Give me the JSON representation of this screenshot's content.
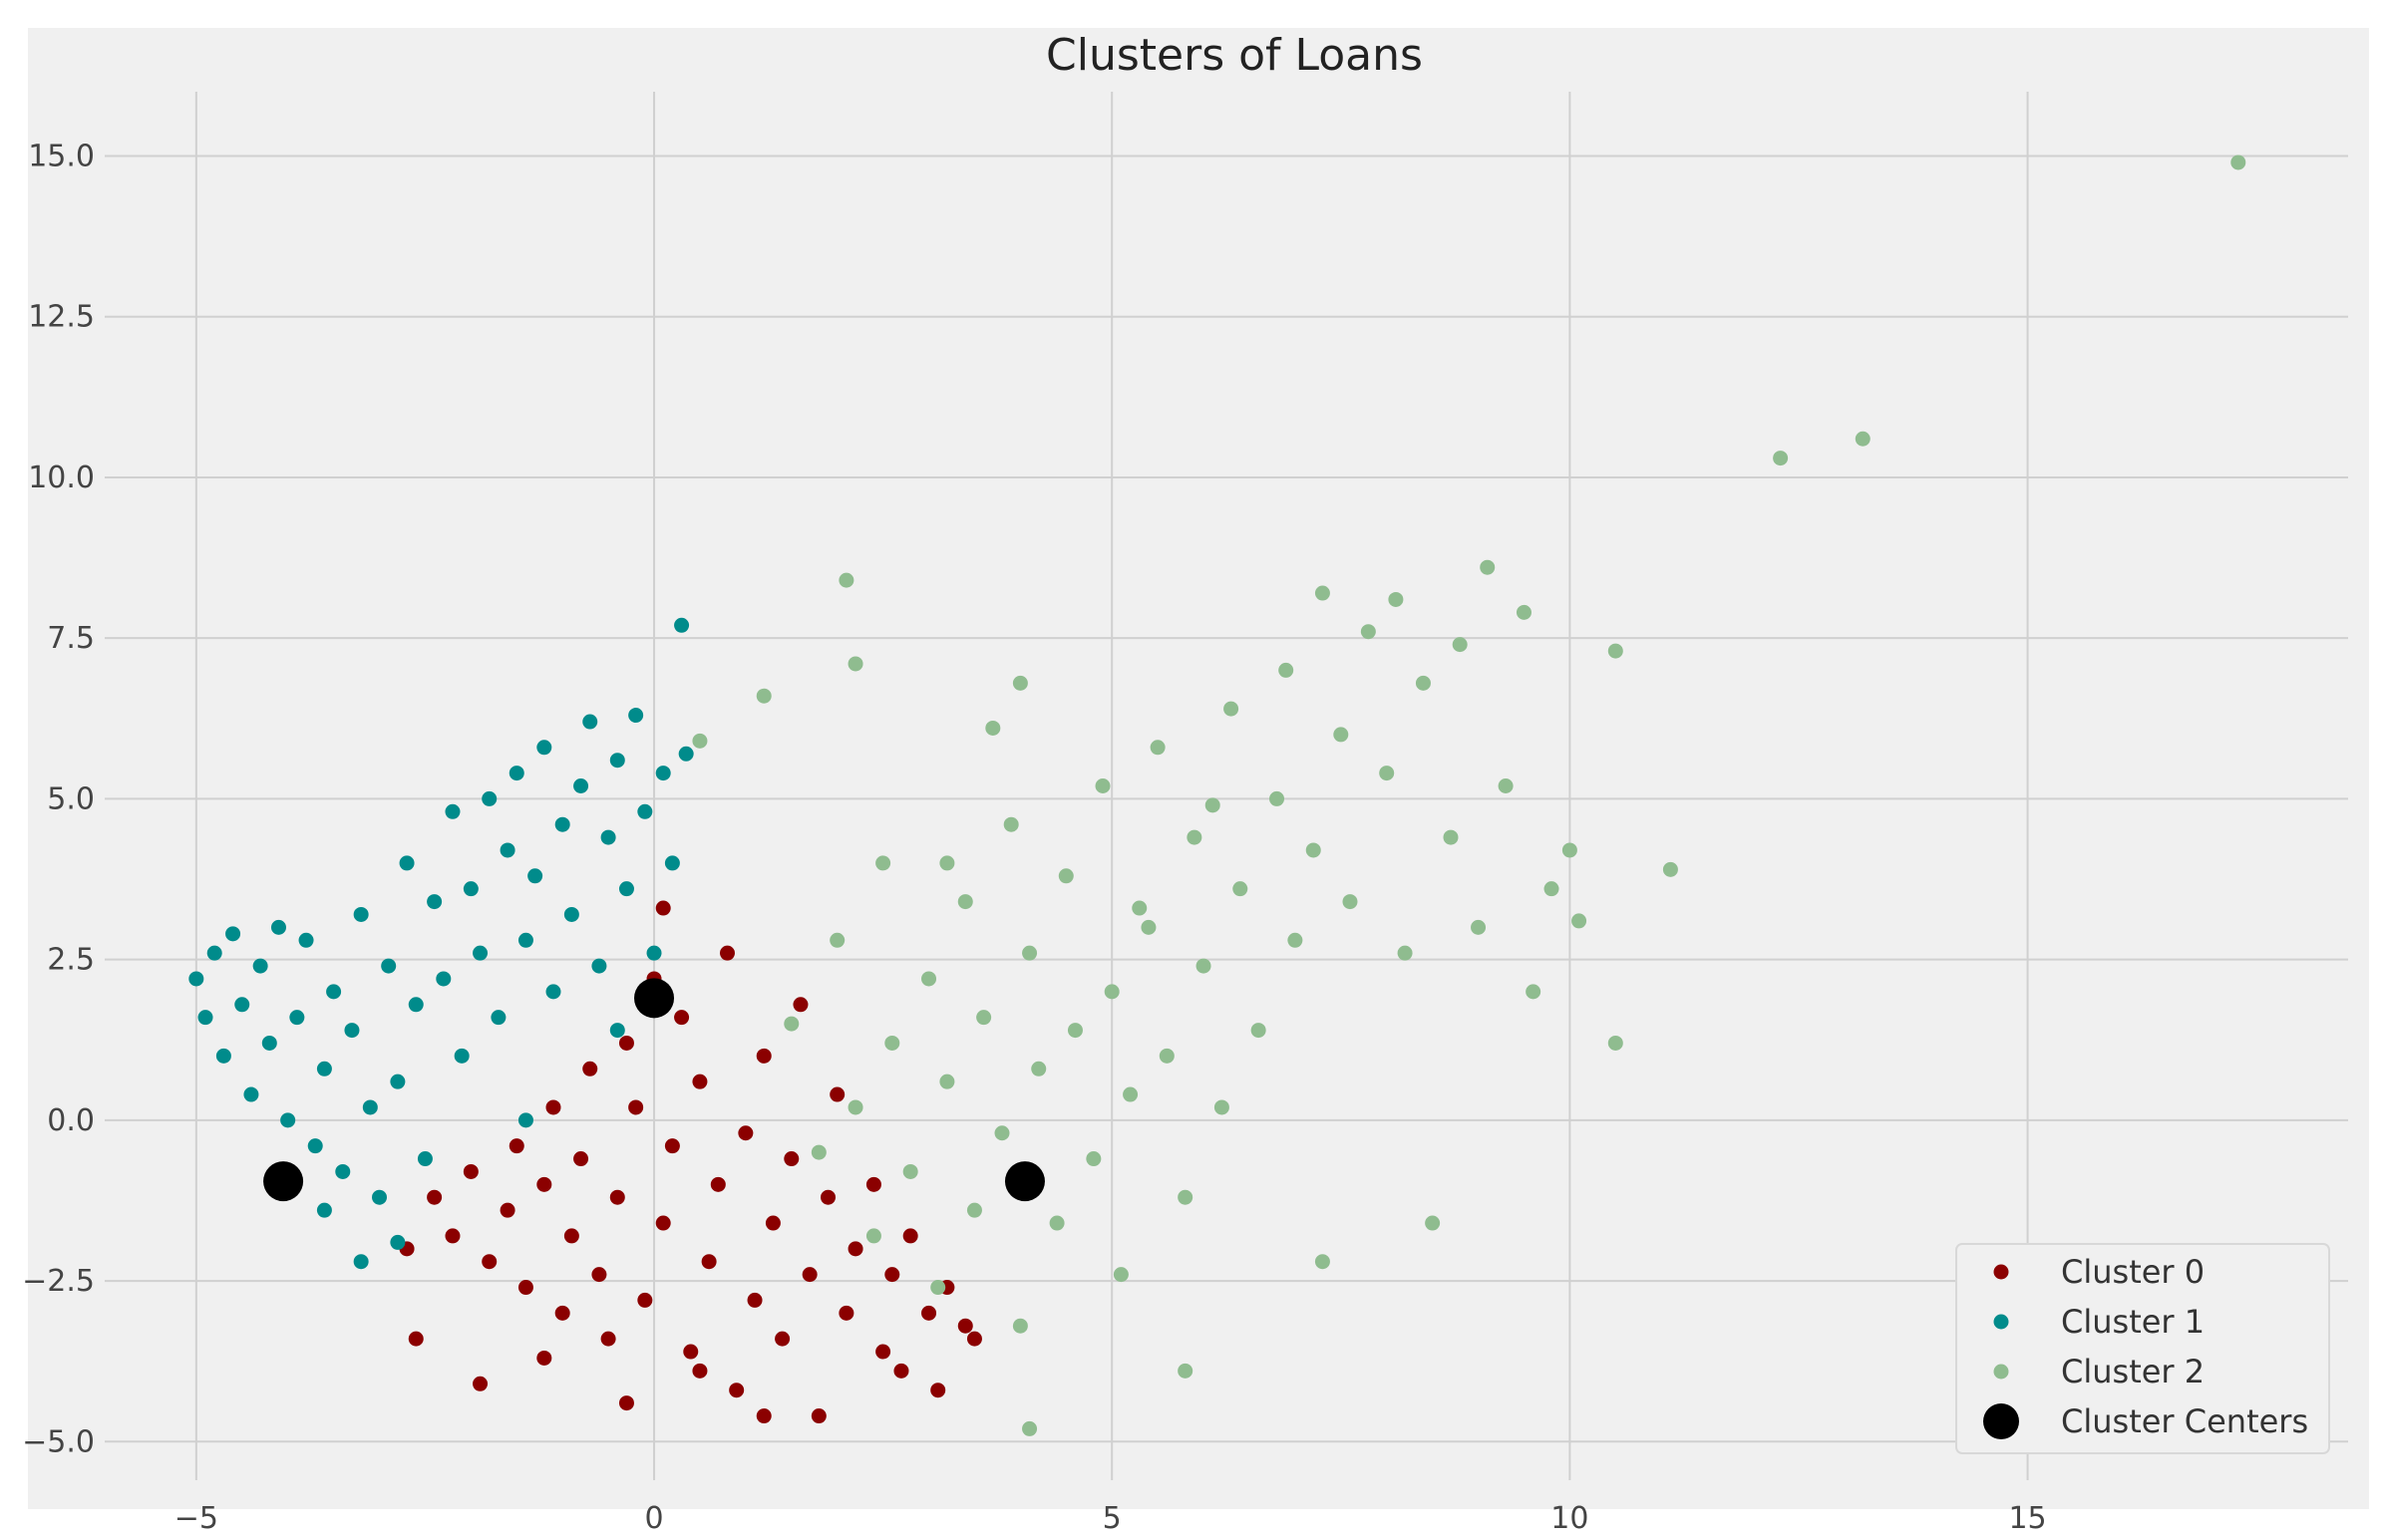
{
  "chart_data": {
    "type": "scatter",
    "title": "Clusters of Loans",
    "xlabel": "",
    "ylabel": "",
    "xlim": [
      -6.0,
      18.5
    ],
    "ylim": [
      -5.6,
      16.0
    ],
    "xticks": [
      -5,
      0,
      5,
      10,
      15
    ],
    "xtick_labels": [
      "−5",
      "0",
      "5",
      "10",
      "15"
    ],
    "yticks": [
      -5.0,
      -2.5,
      0.0,
      2.5,
      5.0,
      7.5,
      10.0,
      12.5,
      15.0
    ],
    "ytick_labels": [
      "−5.0",
      "−2.5",
      "0.0",
      "2.5",
      "5.0",
      "7.5",
      "10.0",
      "12.5",
      "15.0"
    ],
    "grid": true,
    "legend_position": "lower-right",
    "background_color": "#f0f0f0",
    "grid_color": "#d0d0d0",
    "series": [
      {
        "name": "Cluster 0",
        "color": "#8b0000",
        "points": [
          [
            -2.4,
            -1.2
          ],
          [
            -2.2,
            -1.8
          ],
          [
            -2.0,
            -0.8
          ],
          [
            -1.8,
            -2.2
          ],
          [
            -1.6,
            -1.4
          ],
          [
            -1.5,
            -0.4
          ],
          [
            -1.4,
            -2.6
          ],
          [
            -1.2,
            -1.0
          ],
          [
            -1.1,
            0.2
          ],
          [
            -1.0,
            -3.0
          ],
          [
            -0.9,
            -1.8
          ],
          [
            -0.8,
            -0.6
          ],
          [
            -0.7,
            0.8
          ],
          [
            -0.6,
            -2.4
          ],
          [
            -0.5,
            -3.4
          ],
          [
            -0.4,
            -1.2
          ],
          [
            -0.3,
            1.2
          ],
          [
            -0.2,
            0.2
          ],
          [
            -0.1,
            -2.8
          ],
          [
            0.0,
            2.2
          ],
          [
            0.1,
            -1.6
          ],
          [
            0.2,
            -0.4
          ],
          [
            0.3,
            1.6
          ],
          [
            0.4,
            -3.6
          ],
          [
            0.5,
            0.6
          ],
          [
            0.6,
            -2.2
          ],
          [
            0.7,
            -1.0
          ],
          [
            0.8,
            2.6
          ],
          [
            0.9,
            -4.2
          ],
          [
            1.0,
            -0.2
          ],
          [
            1.1,
            -2.8
          ],
          [
            1.2,
            1.0
          ],
          [
            1.3,
            -1.6
          ],
          [
            1.4,
            -3.4
          ],
          [
            1.5,
            -0.6
          ],
          [
            1.6,
            1.8
          ],
          [
            1.7,
            -2.4
          ],
          [
            1.8,
            -4.6
          ],
          [
            1.9,
            -1.2
          ],
          [
            2.0,
            0.4
          ],
          [
            2.1,
            -3.0
          ],
          [
            2.2,
            -2.0
          ],
          [
            2.4,
            -1.0
          ],
          [
            2.5,
            -3.6
          ],
          [
            2.6,
            -2.4
          ],
          [
            2.8,
            -1.8
          ],
          [
            3.0,
            -3.0
          ],
          [
            3.1,
            -4.2
          ],
          [
            3.2,
            -2.6
          ],
          [
            3.4,
            -3.2
          ],
          [
            3.5,
            -3.4
          ],
          [
            -2.6,
            -3.4
          ],
          [
            -1.9,
            -4.1
          ],
          [
            -0.3,
            -4.4
          ],
          [
            0.1,
            3.3
          ],
          [
            1.2,
            -4.6
          ],
          [
            -1.2,
            -3.7
          ],
          [
            0.5,
            -3.9
          ],
          [
            2.7,
            -3.9
          ],
          [
            -2.7,
            -2.0
          ]
        ]
      },
      {
        "name": "Cluster 1",
        "color": "#008b8b",
        "points": [
          [
            -5.0,
            2.2
          ],
          [
            -4.9,
            1.6
          ],
          [
            -4.8,
            2.6
          ],
          [
            -4.7,
            1.0
          ],
          [
            -4.6,
            2.9
          ],
          [
            -4.5,
            1.8
          ],
          [
            -4.4,
            0.4
          ],
          [
            -4.3,
            2.4
          ],
          [
            -4.2,
            1.2
          ],
          [
            -4.1,
            3.0
          ],
          [
            -4.0,
            0.0
          ],
          [
            -3.9,
            1.6
          ],
          [
            -3.8,
            2.8
          ],
          [
            -3.7,
            -0.4
          ],
          [
            -3.6,
            0.8
          ],
          [
            -3.5,
            2.0
          ],
          [
            -3.4,
            -0.8
          ],
          [
            -3.3,
            1.4
          ],
          [
            -3.2,
            3.2
          ],
          [
            -3.1,
            0.2
          ],
          [
            -3.0,
            -1.2
          ],
          [
            -2.9,
            2.4
          ],
          [
            -2.8,
            0.6
          ],
          [
            -2.7,
            4.0
          ],
          [
            -2.6,
            1.8
          ],
          [
            -2.5,
            -0.6
          ],
          [
            -2.4,
            3.4
          ],
          [
            -2.3,
            2.2
          ],
          [
            -2.2,
            4.8
          ],
          [
            -2.1,
            1.0
          ],
          [
            -2.0,
            3.6
          ],
          [
            -1.9,
            2.6
          ],
          [
            -1.8,
            5.0
          ],
          [
            -1.7,
            1.6
          ],
          [
            -1.6,
            4.2
          ],
          [
            -1.5,
            5.4
          ],
          [
            -1.4,
            2.8
          ],
          [
            -1.3,
            3.8
          ],
          [
            -1.2,
            5.8
          ],
          [
            -1.1,
            2.0
          ],
          [
            -1.0,
            4.6
          ],
          [
            -0.9,
            3.2
          ],
          [
            -0.8,
            5.2
          ],
          [
            -0.7,
            6.2
          ],
          [
            -0.6,
            2.4
          ],
          [
            -0.5,
            4.4
          ],
          [
            -0.4,
            5.6
          ],
          [
            -0.3,
            3.6
          ],
          [
            -0.2,
            6.3
          ],
          [
            -0.1,
            4.8
          ],
          [
            0.0,
            2.6
          ],
          [
            0.1,
            5.4
          ],
          [
            0.2,
            4.0
          ],
          [
            0.3,
            7.7
          ],
          [
            -3.2,
            -2.2
          ],
          [
            -3.6,
            -1.4
          ],
          [
            -2.8,
            -1.9
          ],
          [
            -1.4,
            0.0
          ],
          [
            -0.4,
            1.4
          ],
          [
            0.35,
            5.7
          ]
        ]
      },
      {
        "name": "Cluster 2",
        "color": "#8fbc8f",
        "points": [
          [
            1.5,
            1.5
          ],
          [
            1.8,
            -0.5
          ],
          [
            2.0,
            2.8
          ],
          [
            2.2,
            0.2
          ],
          [
            2.4,
            -1.8
          ],
          [
            2.5,
            4.0
          ],
          [
            2.6,
            1.2
          ],
          [
            2.8,
            -0.8
          ],
          [
            3.0,
            2.2
          ],
          [
            3.1,
            -2.6
          ],
          [
            3.2,
            0.6
          ],
          [
            3.4,
            3.4
          ],
          [
            3.5,
            -1.4
          ],
          [
            3.6,
            1.6
          ],
          [
            3.8,
            -0.2
          ],
          [
            3.9,
            4.6
          ],
          [
            4.0,
            -3.2
          ],
          [
            4.1,
            2.6
          ],
          [
            4.2,
            0.8
          ],
          [
            4.4,
            -1.6
          ],
          [
            4.5,
            3.8
          ],
          [
            4.6,
            1.4
          ],
          [
            4.8,
            -0.6
          ],
          [
            4.9,
            5.2
          ],
          [
            5.0,
            2.0
          ],
          [
            5.1,
            -2.4
          ],
          [
            5.2,
            0.4
          ],
          [
            5.4,
            3.0
          ],
          [
            5.5,
            5.8
          ],
          [
            5.6,
            1.0
          ],
          [
            5.8,
            -1.2
          ],
          [
            5.9,
            4.4
          ],
          [
            6.0,
            2.4
          ],
          [
            6.2,
            0.2
          ],
          [
            6.3,
            6.4
          ],
          [
            6.4,
            3.6
          ],
          [
            6.6,
            1.4
          ],
          [
            6.8,
            5.0
          ],
          [
            6.9,
            7.0
          ],
          [
            7.0,
            2.8
          ],
          [
            7.2,
            4.2
          ],
          [
            7.3,
            8.2
          ],
          [
            7.5,
            6.0
          ],
          [
            7.6,
            3.4
          ],
          [
            7.8,
            7.6
          ],
          [
            8.0,
            5.4
          ],
          [
            8.1,
            8.1
          ],
          [
            8.2,
            2.6
          ],
          [
            8.4,
            6.8
          ],
          [
            8.5,
            -1.6
          ],
          [
            8.7,
            4.4
          ],
          [
            8.8,
            7.4
          ],
          [
            9.0,
            3.0
          ],
          [
            9.1,
            8.6
          ],
          [
            9.3,
            5.2
          ],
          [
            9.5,
            7.9
          ],
          [
            9.6,
            2.0
          ],
          [
            9.8,
            3.6
          ],
          [
            10.0,
            4.2
          ],
          [
            10.1,
            3.1
          ],
          [
            10.5,
            7.3
          ],
          [
            10.5,
            1.2
          ],
          [
            11.1,
            3.9
          ],
          [
            12.3,
            10.3
          ],
          [
            13.2,
            10.6
          ],
          [
            17.3,
            14.9
          ],
          [
            2.1,
            8.4
          ],
          [
            2.2,
            7.1
          ],
          [
            1.2,
            6.6
          ],
          [
            4.1,
            -4.8
          ],
          [
            5.8,
            -3.9
          ],
          [
            4.0,
            6.8
          ],
          [
            3.7,
            6.1
          ],
          [
            0.5,
            5.9
          ],
          [
            7.3,
            -2.2
          ],
          [
            3.2,
            4.0
          ],
          [
            6.1,
            4.9
          ],
          [
            5.3,
            3.3
          ]
        ]
      }
    ],
    "centers": {
      "name": "Cluster Centers",
      "color": "#000000",
      "points": [
        [
          -4.05,
          -0.95
        ],
        [
          0.0,
          1.9
        ],
        [
          4.05,
          -0.95
        ]
      ]
    }
  }
}
